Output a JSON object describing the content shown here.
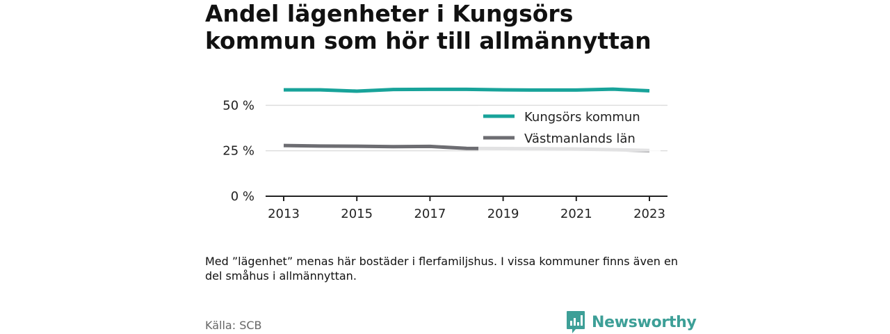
{
  "title": "Andel lägenheter i Kungsörs kommun som hör till allmännyttan",
  "note": "Med ”lägenhet” menas här bostäder i flerfamiljshus. I vissa kommuner finns även en del småhus i allmännyttan.",
  "source": "Källa: SCB",
  "brand": "Newsworthy",
  "colors": {
    "kungsor": "#18a39a",
    "vastmanland": "#6d6d72",
    "grid": "#dddddd",
    "axis": "#222222",
    "brand": "#3d9f97"
  },
  "chart_data": {
    "type": "line",
    "x": [
      2013,
      2014,
      2015,
      2016,
      2017,
      2018,
      2019,
      2020,
      2021,
      2022,
      2023
    ],
    "x_ticks": [
      "2013",
      "2015",
      "2017",
      "2019",
      "2021",
      "2023"
    ],
    "y_ticks": [
      "0 %",
      "25 %",
      "50 %"
    ],
    "y_tick_values": [
      0,
      25,
      50
    ],
    "ylim": [
      0,
      62
    ],
    "grid": true,
    "legend_position": "top-right",
    "series": [
      {
        "name": "Kungsörs kommun",
        "values": [
          58.5,
          58.5,
          57.8,
          58.7,
          58.8,
          58.8,
          58.5,
          58.4,
          58.4,
          58.9,
          58.0
        ]
      },
      {
        "name": "Västmanlands län",
        "values": [
          27.9,
          27.6,
          27.5,
          27.3,
          27.4,
          26.3,
          26.2,
          26.1,
          26.0,
          25.6,
          25.2
        ]
      }
    ]
  }
}
